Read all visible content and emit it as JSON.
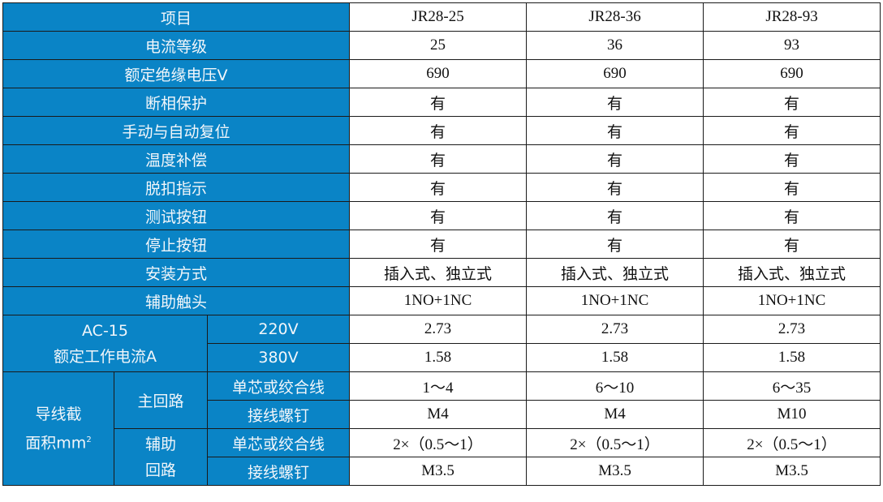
{
  "colors": {
    "header_bg": "#0a84c6",
    "header_text": "#f2f6fa",
    "cell_bg": "#ffffff"
  },
  "header": {
    "label": "项目",
    "models": [
      "JR28-25",
      "JR28-36",
      "JR28-93"
    ]
  },
  "rows": [
    {
      "label": "电流等级",
      "values": [
        "25",
        "36",
        "93"
      ]
    },
    {
      "label": "额定绝缘电压V",
      "values": [
        "690",
        "690",
        "690"
      ]
    },
    {
      "label": "断相保护",
      "values": [
        "有",
        "有",
        "有"
      ]
    },
    {
      "label": "手动与自动复位",
      "values": [
        "有",
        "有",
        "有"
      ]
    },
    {
      "label": "温度补偿",
      "values": [
        "有",
        "有",
        "有"
      ]
    },
    {
      "label": "脱扣指示",
      "values": [
        "有",
        "有",
        "有"
      ]
    },
    {
      "label": "测试按钮",
      "values": [
        "有",
        "有",
        "有"
      ]
    },
    {
      "label": "停止按钮",
      "values": [
        "有",
        "有",
        "有"
      ]
    },
    {
      "label": "安装方式",
      "values": [
        "插入式、独立式",
        "插入式、独立式",
        "插入式、独立式"
      ]
    },
    {
      "label": "辅助触头",
      "values": [
        "1NO+1NC",
        "1NO+1NC",
        "1NO+1NC"
      ]
    }
  ],
  "ac15": {
    "label_line1": "AC-15",
    "label_line2": "额定工作电流A",
    "rows": [
      {
        "label": "220V",
        "values": [
          "2.73",
          "2.73",
          "2.73"
        ]
      },
      {
        "label": "380V",
        "values": [
          "1.58",
          "1.58",
          "1.58"
        ]
      }
    ]
  },
  "wire": {
    "label_line1": "导线截",
    "label_line2": "面积mm",
    "label_sup": "2",
    "main": {
      "label": "主回路",
      "rows": [
        {
          "label": "单芯或绞合线",
          "values": [
            "1～4",
            "6～10",
            "6～35"
          ]
        },
        {
          "label": "接线螺钉",
          "values": [
            "M4",
            "M4",
            "M10"
          ]
        }
      ]
    },
    "aux": {
      "label_line1": "辅助",
      "label_line2": "回路",
      "rows": [
        {
          "label": "单芯或绞合线",
          "values": [
            "2×（0.5～1）",
            "2×（0.5～1）",
            "2×（0.5～1）"
          ]
        },
        {
          "label": "接线螺钉",
          "values": [
            "M3.5",
            "M3.5",
            "M3.5"
          ]
        }
      ]
    }
  }
}
